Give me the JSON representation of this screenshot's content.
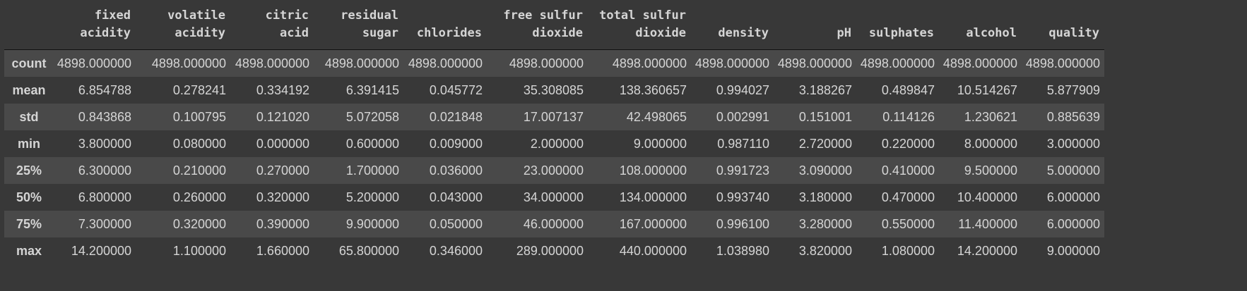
{
  "table": {
    "columns": [
      "fixed\nacidity",
      "volatile\nacidity",
      "citric\nacid",
      "residual\nsugar",
      "chlorides",
      "free sulfur\ndioxide",
      "total sulfur\ndioxide",
      "density",
      "pH",
      "sulphates",
      "alcohol",
      "quality"
    ],
    "rows": [
      {
        "label": "count",
        "values": [
          "4898.000000",
          "4898.000000",
          "4898.000000",
          "4898.000000",
          "4898.000000",
          "4898.000000",
          "4898.000000",
          "4898.000000",
          "4898.000000",
          "4898.000000",
          "4898.000000",
          "4898.000000"
        ]
      },
      {
        "label": "mean",
        "values": [
          "6.854788",
          "0.278241",
          "0.334192",
          "6.391415",
          "0.045772",
          "35.308085",
          "138.360657",
          "0.994027",
          "3.188267",
          "0.489847",
          "10.514267",
          "5.877909"
        ]
      },
      {
        "label": "std",
        "values": [
          "0.843868",
          "0.100795",
          "0.121020",
          "5.072058",
          "0.021848",
          "17.007137",
          "42.498065",
          "0.002991",
          "0.151001",
          "0.114126",
          "1.230621",
          "0.885639"
        ]
      },
      {
        "label": "min",
        "values": [
          "3.800000",
          "0.080000",
          "0.000000",
          "0.600000",
          "0.009000",
          "2.000000",
          "9.000000",
          "0.987110",
          "2.720000",
          "0.220000",
          "8.000000",
          "3.000000"
        ]
      },
      {
        "label": "25%",
        "values": [
          "6.300000",
          "0.210000",
          "0.270000",
          "1.700000",
          "0.036000",
          "23.000000",
          "108.000000",
          "0.991723",
          "3.090000",
          "0.410000",
          "9.500000",
          "5.000000"
        ]
      },
      {
        "label": "50%",
        "values": [
          "6.800000",
          "0.260000",
          "0.320000",
          "5.200000",
          "0.043000",
          "34.000000",
          "134.000000",
          "0.993740",
          "3.180000",
          "0.470000",
          "10.400000",
          "6.000000"
        ]
      },
      {
        "label": "75%",
        "values": [
          "7.300000",
          "0.320000",
          "0.390000",
          "9.900000",
          "0.050000",
          "46.000000",
          "167.000000",
          "0.996100",
          "3.280000",
          "0.550000",
          "11.400000",
          "6.000000"
        ]
      },
      {
        "label": "max",
        "values": [
          "14.200000",
          "1.100000",
          "1.660000",
          "65.800000",
          "0.346000",
          "289.000000",
          "440.000000",
          "1.038980",
          "3.820000",
          "1.080000",
          "14.200000",
          "9.000000"
        ]
      }
    ]
  }
}
